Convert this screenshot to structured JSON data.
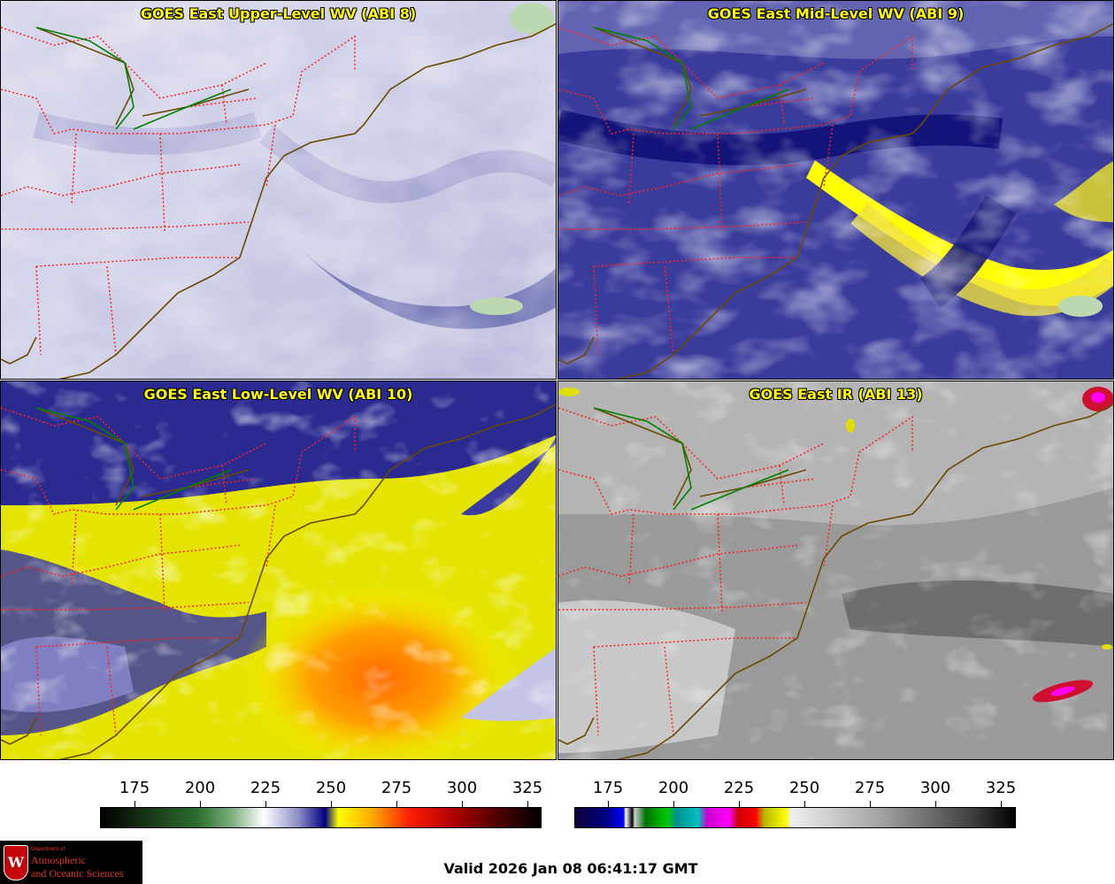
{
  "panels": [
    {
      "title": "GOES East Upper-Level WV (ABI 8)",
      "colormap": "wv"
    },
    {
      "title": "GOES East Mid-Level WV (ABI 9)",
      "colormap": "wv"
    },
    {
      "title": "GOES East Low-Level WV (ABI 10)",
      "colormap": "wv"
    },
    {
      "title": "GOES East IR (ABI 13)",
      "colormap": "ir"
    }
  ],
  "colorbars": [
    {
      "ticks": [
        "175",
        "200",
        "225",
        "250",
        "275",
        "300",
        "325"
      ]
    },
    {
      "ticks": [
        "175",
        "200",
        "225",
        "250",
        "275",
        "300",
        "325"
      ]
    }
  ],
  "logo": {
    "dept": "Department of",
    "line1": "Atmospheric",
    "line2": "and Oceanic Sciences",
    "mark": "W"
  },
  "footer": {
    "valid": "Valid 2026 Jan 08 06:41:17 GMT"
  },
  "colors": {
    "state_borders": "#ff2020",
    "coastline": "#6b4a00",
    "canada_us_border": "#008000",
    "title": "#ffff00"
  }
}
